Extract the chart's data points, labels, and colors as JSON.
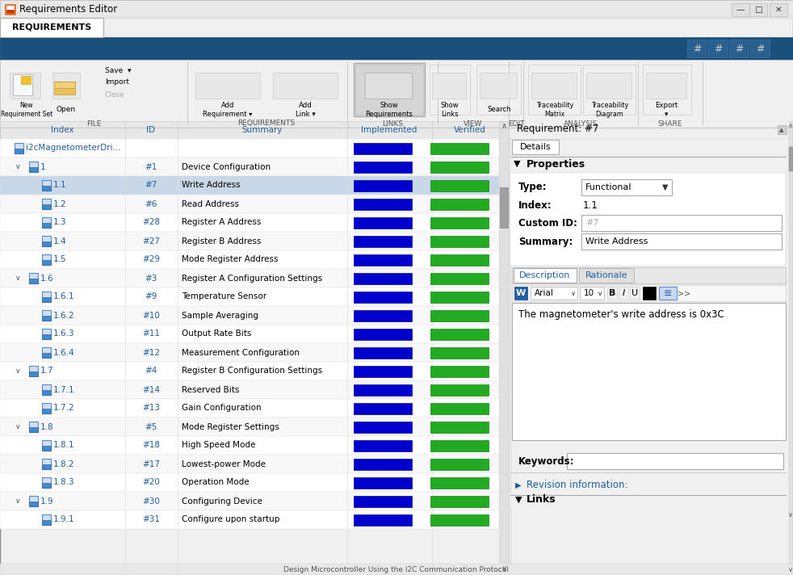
{
  "title_bar": "Requirements Editor",
  "tab_label": "REQUIREMENTS",
  "table_headers": [
    "Index",
    "ID",
    "Summary",
    "Implemented",
    "Verified"
  ],
  "req_panel_title": "Requirement: #7",
  "details_tab": "Details",
  "properties_label": "Properties",
  "type_label": "Type:",
  "type_value": "Functional",
  "index_label": "Index:",
  "index_value": "1.1",
  "custom_id_label": "Custom ID:",
  "custom_id_value": "#7",
  "summary_label": "Summary:",
  "summary_value": "Write Address",
  "desc_tab": "Description",
  "rat_tab": "Rationale",
  "font_name": "Arial",
  "font_size": "10",
  "desc_text": "The magnetometer's write address is 0x3C",
  "keywords_label": "Keywords:",
  "revision_label": "Revision information:",
  "links_label": "Links",
  "rows": [
    {
      "index": "i2cMagnetometerDri...",
      "id": "",
      "summary": "",
      "level": 0,
      "expanded": true,
      "highlighted": false
    },
    {
      "index": "1",
      "id": "#1",
      "summary": "Device Configuration",
      "level": 1,
      "expanded": true,
      "highlighted": false
    },
    {
      "index": "1.1",
      "id": "#7",
      "summary": "Write Address",
      "level": 2,
      "expanded": false,
      "highlighted": true
    },
    {
      "index": "1.2",
      "id": "#6",
      "summary": "Read Address",
      "level": 2,
      "expanded": false,
      "highlighted": false
    },
    {
      "index": "1.3",
      "id": "#28",
      "summary": "Register A Address",
      "level": 2,
      "expanded": false,
      "highlighted": false
    },
    {
      "index": "1.4",
      "id": "#27",
      "summary": "Register B Address",
      "level": 2,
      "expanded": false,
      "highlighted": false
    },
    {
      "index": "1.5",
      "id": "#29",
      "summary": "Mode Register Address",
      "level": 2,
      "expanded": false,
      "highlighted": false
    },
    {
      "index": "1.6",
      "id": "#3",
      "summary": "Register A Configuration Settings",
      "level": 1,
      "expanded": true,
      "highlighted": false
    },
    {
      "index": "1.6.1",
      "id": "#9",
      "summary": "Temperature Sensor",
      "level": 2,
      "expanded": false,
      "highlighted": false
    },
    {
      "index": "1.6.2",
      "id": "#10",
      "summary": "Sample Averaging",
      "level": 2,
      "expanded": false,
      "highlighted": false
    },
    {
      "index": "1.6.3",
      "id": "#11",
      "summary": "Output Rate Bits",
      "level": 2,
      "expanded": false,
      "highlighted": false
    },
    {
      "index": "1.6.4",
      "id": "#12",
      "summary": "Measurement Configuration",
      "level": 2,
      "expanded": false,
      "highlighted": false
    },
    {
      "index": "1.7",
      "id": "#4",
      "summary": "Register B Configuration Settings",
      "level": 1,
      "expanded": true,
      "highlighted": false
    },
    {
      "index": "1.7.1",
      "id": "#14",
      "summary": "Reserved Bits",
      "level": 2,
      "expanded": false,
      "highlighted": false
    },
    {
      "index": "1.7.2",
      "id": "#13",
      "summary": "Gain Configuration",
      "level": 2,
      "expanded": false,
      "highlighted": false
    },
    {
      "index": "1.8",
      "id": "#5",
      "summary": "Mode Register Settings",
      "level": 1,
      "expanded": true,
      "highlighted": false
    },
    {
      "index": "1.8.1",
      "id": "#18",
      "summary": "High Speed Mode",
      "level": 2,
      "expanded": false,
      "highlighted": false
    },
    {
      "index": "1.8.2",
      "id": "#17",
      "summary": "Lowest-power Mode",
      "level": 2,
      "expanded": false,
      "highlighted": false
    },
    {
      "index": "1.8.3",
      "id": "#20",
      "summary": "Operation Mode",
      "level": 2,
      "expanded": false,
      "highlighted": false
    },
    {
      "index": "1.9",
      "id": "#30",
      "summary": "Configuring Device",
      "level": 1,
      "expanded": true,
      "highlighted": false
    },
    {
      "index": "1.9.1",
      "id": "#31",
      "summary": "Configure upon startup",
      "level": 2,
      "expanded": false,
      "highlighted": false
    }
  ],
  "colors": {
    "title_bar_bg": "#f0f0f0",
    "tab_bg": "#1a4f7a",
    "toolbar_bg": "#f0f0f0",
    "table_header_bg": "#e8e8e8",
    "table_header_text": "#2060a0",
    "table_row_bg": "#ffffff",
    "table_alt_row_bg": "#f8f8f8",
    "table_highlight_bg": "#c8d8e8",
    "table_border": "#dddddd",
    "impl_bar": "#0000cc",
    "verif_bar": "#22aa22",
    "panel_bg": "#f0f0f0",
    "scrollbar_bg": "#e0e0e0",
    "scrollbar_thumb": "#a0a0a0",
    "separator": "#cccccc",
    "tree_text_req": "#2060a0",
    "status_bar_bg": "#e8e8e8"
  }
}
